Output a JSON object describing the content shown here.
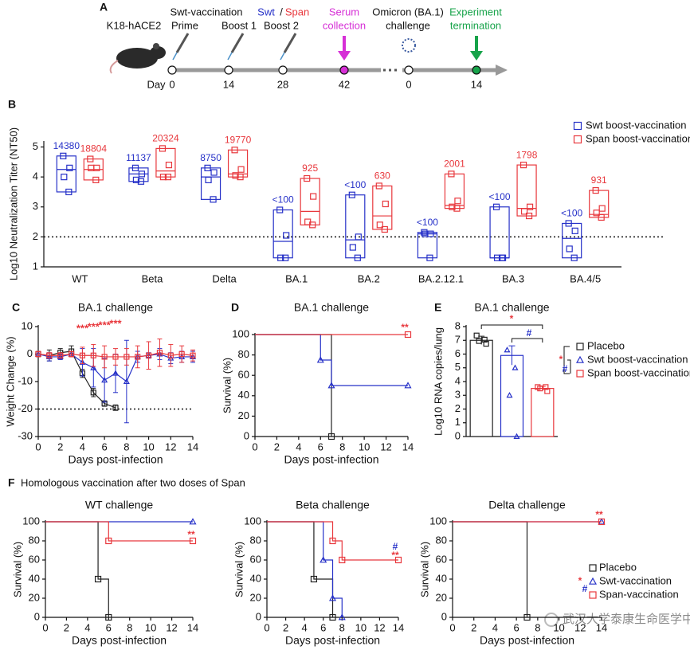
{
  "diagram": {
    "label": "A",
    "model": "K18-hACE2",
    "header_texts": [
      "Swt-vaccination",
      "Prime",
      "Boost 1",
      "Swt",
      "/",
      "Span",
      "Boost 2",
      "Serum",
      "collection",
      "Omicron (BA.1)",
      "challenge",
      "Experiment",
      "termination"
    ],
    "day_label": "Day",
    "days": [
      0,
      14,
      28,
      42,
      0,
      14
    ]
  },
  "panel_F": {
    "label": "F",
    "title": "Homologous vaccination after  two doses of Span"
  },
  "watermark": "武汉大学泰康生命医学中心",
  "chart_data": [
    {
      "type": "box",
      "label": "B",
      "ylabel": "Log10 Neutralization Titer (NT50)",
      "categories": [
        "WT",
        "Beta",
        "Delta",
        "BA.1",
        "BA.2",
        "BA.2.12.1",
        "BA.3",
        "BA.4/5"
      ],
      "ylim": [
        1,
        5.2
      ],
      "yticks": [
        1,
        2,
        3,
        4,
        5
      ],
      "reference_line": 2,
      "series": [
        {
          "name": "Swt boost-vaccination",
          "color": "#2631c8",
          "min": [
            3.5,
            3.85,
            3.25,
            1.3,
            1.3,
            1.3,
            1.3,
            1.3
          ],
          "median": [
            4.25,
            4.1,
            4.0,
            1.85,
            1.9,
            2.1,
            1.3,
            1.95
          ],
          "max": [
            4.7,
            4.3,
            4.3,
            2.9,
            3.4,
            2.15,
            3.0,
            2.45
          ],
          "points": [
            [
              4.7,
              4.3,
              4.0,
              3.5
            ],
            [
              4.3,
              4.1,
              3.9,
              3.85
            ],
            [
              4.3,
              4.15,
              3.9,
              3.25
            ],
            [
              2.9,
              2.05,
              1.3,
              1.3
            ],
            [
              3.4,
              2.0,
              1.65,
              1.3
            ],
            [
              2.15,
              2.1,
              2.1,
              1.3
            ],
            [
              3.0,
              1.3,
              1.3,
              1.3
            ],
            [
              2.45,
              2.2,
              1.6,
              1.3
            ]
          ],
          "titer_labels": [
            "14380",
            "11137",
            "8750",
            "<100",
            "<100",
            "<100",
            "<100",
            "<100"
          ]
        },
        {
          "name": "Span boost-vaccination",
          "color": "#e8383d",
          "min": [
            3.9,
            4.0,
            4.0,
            2.4,
            2.25,
            2.95,
            2.7,
            2.65
          ],
          "median": [
            4.25,
            4.2,
            4.1,
            2.85,
            2.7,
            3.05,
            2.95,
            2.75
          ],
          "max": [
            4.6,
            4.95,
            4.9,
            3.95,
            3.7,
            4.1,
            4.4,
            3.55
          ],
          "points": [
            [
              4.6,
              4.3,
              4.3,
              3.9
            ],
            [
              4.95,
              4.4,
              4.0,
              4.0
            ],
            [
              4.9,
              4.25,
              4.05,
              4.0
            ],
            [
              3.95,
              3.35,
              2.5,
              2.4
            ],
            [
              3.7,
              3.1,
              2.4,
              2.25
            ],
            [
              4.1,
              3.2,
              3.0,
              2.95
            ],
            [
              4.4,
              3.0,
              2.85,
              2.7
            ],
            [
              3.55,
              2.95,
              2.8,
              2.65
            ]
          ],
          "titer_labels": [
            "18804",
            "20324",
            "19770",
            "925",
            "630",
            "2001",
            "1798",
            "931"
          ]
        }
      ]
    },
    {
      "type": "line",
      "label": "C",
      "title": "BA.1 challenge",
      "xlabel": "Days post-infection",
      "ylabel": "Weight Change (%)",
      "x": [
        0,
        1,
        2,
        3,
        4,
        5,
        6,
        7,
        8,
        9,
        10,
        11,
        12,
        13,
        14
      ],
      "xlim": [
        0,
        14
      ],
      "xticks": [
        0,
        2,
        4,
        6,
        8,
        10,
        12,
        14
      ],
      "ylim": [
        -30,
        10
      ],
      "yticks": [
        -30,
        -20,
        -10,
        0,
        10
      ],
      "reference_line": -20,
      "annotation_color": "#e8383d",
      "annotations": [
        {
          "text": "***",
          "x": 4
        },
        {
          "text": "***",
          "x": 5
        },
        {
          "text": "***",
          "x": 6
        },
        {
          "text": "***",
          "x": 7
        }
      ],
      "series": [
        {
          "color": "#222222",
          "marker": "square",
          "values": [
            0,
            -0.5,
            0.5,
            1,
            -7,
            -14,
            -18,
            -19.5,
            null,
            null,
            null,
            null,
            null,
            null,
            null
          ],
          "errors": [
            1,
            2,
            1.5,
            2,
            1.5,
            1.5,
            1,
            1,
            null,
            null,
            null,
            null,
            null,
            null,
            null
          ]
        },
        {
          "color": "#2631c8",
          "marker": "triangle",
          "values": [
            0,
            -1,
            -1,
            0,
            -3,
            -5,
            -9.5,
            -7,
            -10,
            -1,
            -0.5,
            0,
            -1.5,
            -1,
            -1
          ],
          "errors": [
            1,
            1.5,
            1,
            1,
            5,
            7,
            8,
            7,
            15,
            2,
            1,
            2,
            2,
            2,
            2
          ]
        },
        {
          "color": "#e8383d",
          "marker": "square",
          "values": [
            0,
            -0.5,
            -0.5,
            0,
            -0.5,
            -0.5,
            -1,
            -1,
            -1,
            -1,
            -0.5,
            0.5,
            -0.5,
            0,
            -0.5
          ],
          "errors": [
            1,
            1,
            1,
            1,
            3,
            4,
            4,
            3,
            3,
            4,
            5,
            5,
            4,
            3,
            2
          ]
        }
      ]
    },
    {
      "type": "step",
      "label": "D",
      "title": "BA.1 challenge",
      "xlabel": "Days post-infection",
      "ylabel": "Survival (%)",
      "xlim": [
        0,
        14
      ],
      "xticks": [
        0,
        2,
        4,
        6,
        8,
        10,
        12,
        14
      ],
      "ylim": [
        0,
        100
      ],
      "yticks": [
        0,
        20,
        40,
        60,
        80,
        100
      ],
      "annotations": [
        {
          "text": "**",
          "color": "#e8383d"
        }
      ],
      "series": [
        {
          "color": "#222222",
          "marker": "square",
          "x": [
            0,
            7
          ],
          "values": [
            100,
            0
          ]
        },
        {
          "color": "#2631c8",
          "marker": "triangle",
          "x": [
            0,
            6,
            7,
            14
          ],
          "values": [
            100,
            75,
            50,
            50
          ]
        },
        {
          "color": "#e8383d",
          "marker": "square",
          "x": [
            0,
            14
          ],
          "values": [
            100,
            100
          ]
        }
      ]
    },
    {
      "type": "bar",
      "label": "E",
      "title": "BA.1 challenge",
      "ylabel": "Log10 RNA copies/lung",
      "ylim": [
        0,
        8
      ],
      "yticks": [
        0,
        1,
        2,
        3,
        4,
        5,
        6,
        7,
        8
      ],
      "annotations": [
        {
          "text": "*",
          "color": "#e8383d"
        },
        {
          "text": "#",
          "color": "#2631c8"
        },
        {
          "text": "*",
          "color": "#e8383d"
        },
        {
          "text": "#",
          "color": "#2631c8"
        }
      ],
      "series": [
        {
          "name": "Placebo",
          "color": "#222222",
          "marker": "square",
          "values": [
            7.0
          ],
          "errors": [
            0.3
          ],
          "points": [
            7.35,
            7.05,
            6.95,
            6.75
          ]
        },
        {
          "name": "Swt boost-vaccination",
          "color": "#2631c8",
          "marker": "triangle",
          "values": [
            5.9
          ],
          "errors": [
            0.7
          ],
          "points": [
            6.3,
            5.0,
            3.0,
            0
          ]
        },
        {
          "name": "Span boost-vaccination",
          "color": "#e8383d",
          "marker": "square",
          "values": [
            3.5
          ],
          "errors": [
            0.15
          ],
          "points": [
            3.6,
            3.6,
            3.5,
            3.3
          ]
        }
      ]
    },
    {
      "type": "step",
      "title": "WT challenge",
      "xlabel": "Days post-infection",
      "ylabel": "Survival (%)",
      "xlim": [
        0,
        14
      ],
      "xticks": [
        0,
        2,
        4,
        6,
        8,
        10,
        12,
        14
      ],
      "ylim": [
        0,
        100
      ],
      "yticks": [
        0,
        20,
        40,
        60,
        80,
        100
      ],
      "annotations": [
        {
          "text": "**",
          "color": "#e8383d"
        }
      ],
      "series": [
        {
          "color": "#222222",
          "marker": "square",
          "x": [
            0,
            5,
            6
          ],
          "values": [
            100,
            40,
            0
          ]
        },
        {
          "color": "#2631c8",
          "marker": "triangle",
          "x": [
            0,
            14
          ],
          "values": [
            100,
            100
          ]
        },
        {
          "color": "#e8383d",
          "marker": "square",
          "x": [
            0,
            6,
            14
          ],
          "values": [
            100,
            80,
            80
          ]
        }
      ]
    },
    {
      "type": "step",
      "title": "Beta challenge",
      "xlabel": "Days post-infection",
      "ylabel": "Survival (%)",
      "xlim": [
        0,
        14
      ],
      "xticks": [
        0,
        2,
        4,
        6,
        8,
        10,
        12,
        14
      ],
      "ylim": [
        0,
        100
      ],
      "yticks": [
        0,
        20,
        40,
        60,
        80,
        100
      ],
      "annotations": [
        {
          "text": "#",
          "color": "#2631c8"
        },
        {
          "text": "**",
          "color": "#e8383d"
        }
      ],
      "series": [
        {
          "color": "#222222",
          "marker": "square",
          "x": [
            0,
            5,
            7
          ],
          "values": [
            100,
            40,
            0
          ]
        },
        {
          "color": "#2631c8",
          "marker": "triangle",
          "x": [
            0,
            6,
            7,
            8
          ],
          "values": [
            100,
            60,
            20,
            0
          ]
        },
        {
          "color": "#e8383d",
          "marker": "square",
          "x": [
            0,
            7,
            8,
            14
          ],
          "values": [
            100,
            80,
            60,
            60
          ]
        }
      ]
    },
    {
      "type": "step",
      "title": "Delta challenge",
      "xlabel": "Days post-infection",
      "ylabel": "Survival (%)",
      "xlim": [
        0,
        14
      ],
      "xticks": [
        0,
        2,
        4,
        6,
        8,
        10,
        12,
        14
      ],
      "ylim": [
        0,
        100
      ],
      "yticks": [
        0,
        20,
        40,
        60,
        80,
        100
      ],
      "annotations": [
        {
          "text": "**",
          "color": "#e8383d"
        },
        {
          "text": "*",
          "color": "#e8383d"
        },
        {
          "text": "#",
          "color": "#2631c8"
        }
      ],
      "series": [
        {
          "name": "Placebo",
          "color": "#222222",
          "marker": "square",
          "x": [
            0,
            7
          ],
          "values": [
            100,
            0
          ]
        },
        {
          "name": "Swt-vaccination",
          "color": "#2631c8",
          "marker": "triangle",
          "x": [
            0,
            14
          ],
          "values": [
            100,
            100
          ]
        },
        {
          "name": "Span-vaccination",
          "color": "#e8383d",
          "marker": "square",
          "x": [
            0,
            14
          ],
          "values": [
            100,
            100
          ]
        }
      ]
    }
  ]
}
